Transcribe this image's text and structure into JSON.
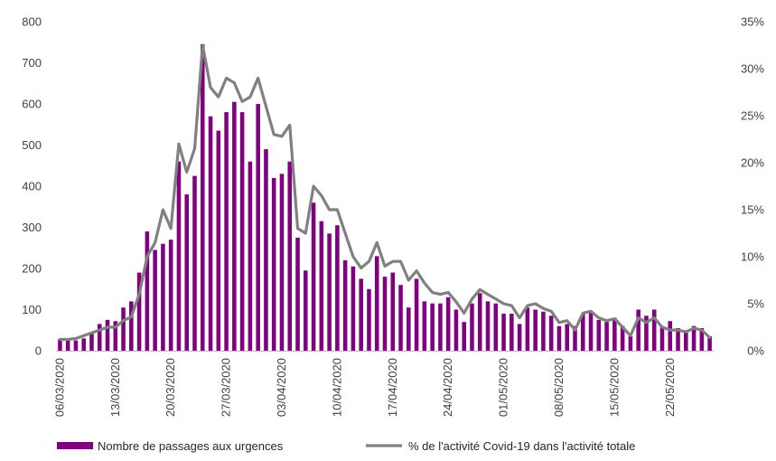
{
  "chart_data": {
    "type": "bar+line",
    "title": "",
    "xlabel": "",
    "ylabel": "",
    "y2label": "",
    "ylim": [
      0,
      800
    ],
    "y2lim": [
      0,
      0.35
    ],
    "yticks": [
      "0",
      "100",
      "200",
      "300",
      "400",
      "500",
      "600",
      "700",
      "800"
    ],
    "y2ticks": [
      "0%",
      "5%",
      "10%",
      "15%",
      "20%",
      "25%",
      "30%",
      "35%"
    ],
    "x_tick_labels": [
      "06/03/2020",
      "13/03/2020",
      "20/03/2020",
      "27/03/2020",
      "03/04/2020",
      "10/04/2020",
      "17/04/2020",
      "24/04/2020",
      "01/05/2020",
      "08/05/2020",
      "15/05/2020",
      "22/05/2020"
    ],
    "x_tick_every": 7,
    "grid": false,
    "legend_position": "bottom",
    "colors": {
      "bars": "#800080",
      "line": "#808080",
      "text": "#404040",
      "axis": "#bfbfbf"
    },
    "series": [
      {
        "name": "Nombre de passages aux urgences",
        "type": "bar",
        "axis": "left",
        "values": [
          28,
          30,
          25,
          30,
          42,
          65,
          75,
          72,
          105,
          120,
          190,
          290,
          245,
          260,
          270,
          460,
          380,
          425,
          745,
          570,
          535,
          580,
          605,
          580,
          460,
          600,
          490,
          420,
          430,
          460,
          275,
          195,
          360,
          315,
          285,
          305,
          220,
          205,
          175,
          150,
          230,
          180,
          190,
          160,
          105,
          175,
          120,
          115,
          115,
          130,
          100,
          70,
          115,
          140,
          120,
          115,
          90,
          90,
          65,
          105,
          100,
          95,
          85,
          60,
          65,
          60,
          90,
          95,
          75,
          70,
          80,
          60,
          35,
          100,
          85,
          100,
          60,
          72,
          55,
          50,
          60,
          55,
          35
        ]
      },
      {
        "name": "% de l'activité Covid-19 dans l'activité totale",
        "type": "line",
        "axis": "right",
        "values": [
          0.012,
          0.012,
          0.013,
          0.016,
          0.019,
          0.022,
          0.025,
          0.025,
          0.032,
          0.036,
          0.06,
          0.1,
          0.115,
          0.15,
          0.13,
          0.22,
          0.19,
          0.215,
          0.325,
          0.28,
          0.27,
          0.29,
          0.285,
          0.265,
          0.27,
          0.29,
          0.26,
          0.23,
          0.228,
          0.24,
          0.13,
          0.125,
          0.175,
          0.165,
          0.15,
          0.15,
          0.125,
          0.1,
          0.088,
          0.095,
          0.115,
          0.09,
          0.095,
          0.095,
          0.075,
          0.085,
          0.072,
          0.062,
          0.06,
          0.062,
          0.052,
          0.04,
          0.055,
          0.065,
          0.06,
          0.055,
          0.05,
          0.048,
          0.035,
          0.048,
          0.05,
          0.045,
          0.042,
          0.03,
          0.032,
          0.022,
          0.04,
          0.042,
          0.035,
          0.032,
          0.034,
          0.025,
          0.016,
          0.035,
          0.03,
          0.035,
          0.025,
          0.022,
          0.022,
          0.02,
          0.024,
          0.022,
          0.014
        ]
      }
    ]
  }
}
